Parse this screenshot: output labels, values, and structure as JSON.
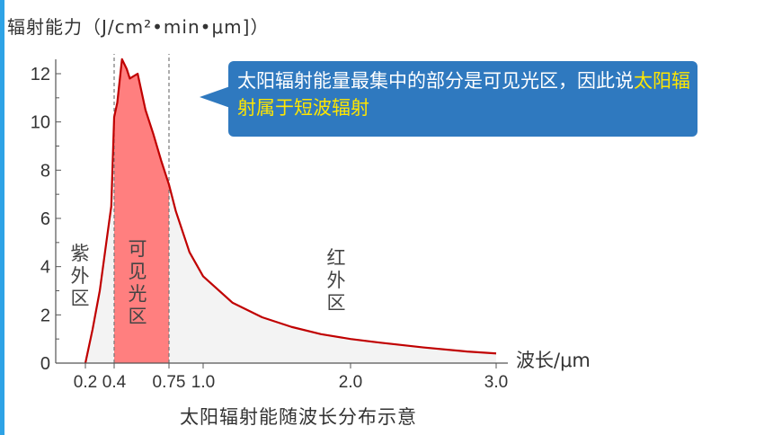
{
  "y_axis_label": "辐射能力（J/cm²•min•μm]）",
  "callout": {
    "text_before": "太阳辐射能量最集中的部分是可见光区，因此说",
    "text_highlight": "太阳辐射属于短波辐射"
  },
  "x_axis_unit": "波长/μm",
  "caption": "太阳辐射能随波长分布示意",
  "regions": {
    "uv": "紫外区",
    "visible": "可见光区",
    "ir": "红外区"
  },
  "colors": {
    "curve": "#c00000",
    "visible_fill": "#ff7f7f",
    "other_fill": "#f3f3f3",
    "callout_bg": "#2f79bf",
    "highlight": "#ffe600"
  },
  "chart_data": {
    "type": "area",
    "x_ticks": [
      "0.2",
      "0.4",
      "0.75",
      "1.0",
      "2.0",
      "3.0"
    ],
    "y_ticks": [
      "0",
      "2",
      "4",
      "6",
      "8",
      "10",
      "12"
    ],
    "ylim": [
      0,
      12
    ],
    "x_unit": "μm",
    "boundaries": [
      0.4,
      0.75
    ],
    "series": [
      {
        "values": [
          [
            0.2,
            0
          ],
          [
            0.25,
            1.4
          ],
          [
            0.3,
            3.0
          ],
          [
            0.35,
            5.2
          ],
          [
            0.38,
            6.5
          ],
          [
            0.4,
            10.2
          ],
          [
            0.42,
            10.8
          ],
          [
            0.45,
            12.6
          ],
          [
            0.48,
            12.2
          ],
          [
            0.5,
            11.8
          ],
          [
            0.55,
            12.0
          ],
          [
            0.6,
            10.5
          ],
          [
            0.65,
            9.5
          ],
          [
            0.7,
            8.4
          ],
          [
            0.75,
            7.4
          ],
          [
            0.8,
            6.3
          ],
          [
            0.9,
            4.6
          ],
          [
            1.0,
            3.6
          ],
          [
            1.2,
            2.5
          ],
          [
            1.4,
            1.9
          ],
          [
            1.6,
            1.5
          ],
          [
            1.8,
            1.2
          ],
          [
            2.0,
            1.0
          ],
          [
            2.2,
            0.85
          ],
          [
            2.5,
            0.65
          ],
          [
            2.8,
            0.48
          ],
          [
            3.0,
            0.4
          ]
        ]
      }
    ]
  }
}
